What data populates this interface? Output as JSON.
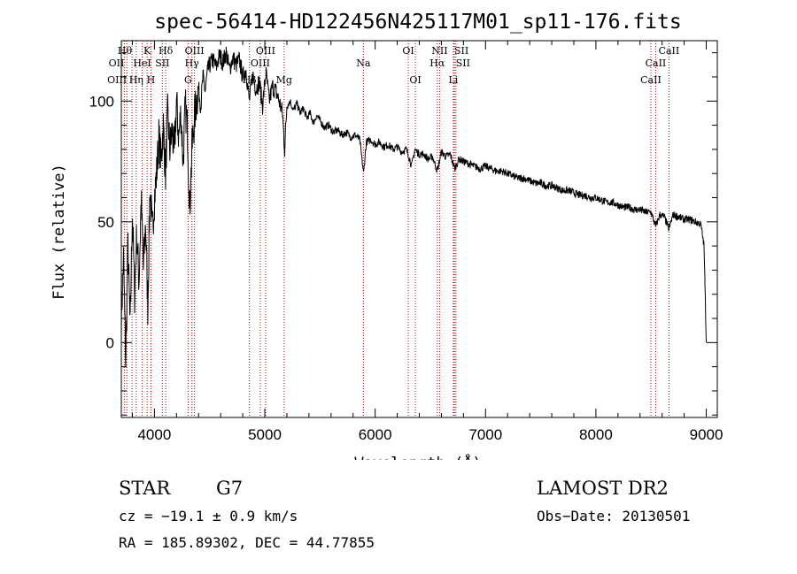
{
  "chart_data": {
    "type": "line",
    "title": "spec-56414-HD122456N425117M01_sp11-176.fits",
    "xlabel": "Wavelength (Å)",
    "ylabel": "Flux (relative)",
    "xlim": [
      3700,
      9100
    ],
    "ylim": [
      -31,
      125
    ],
    "xticks": [
      4000,
      5000,
      6000,
      7000,
      8000,
      9000
    ],
    "yticks": [
      0,
      50,
      100
    ],
    "grid": false,
    "line_color": "#000000",
    "marker_color": "#b30000",
    "series": [
      {
        "x": [
          3700,
          3720,
          3740,
          3760,
          3780,
          3800,
          3820,
          3840,
          3860,
          3880,
          3900,
          3920,
          3940,
          3960,
          3980,
          4000,
          4020,
          4040,
          4060,
          4080,
          4100,
          4120,
          4140,
          4160,
          4180,
          4200,
          4220,
          4240,
          4260,
          4280,
          4300,
          4320,
          4340,
          4360,
          4380,
          4400,
          4420,
          4440,
          4460,
          4480,
          4500,
          4530,
          4560,
          4590,
          4620,
          4650,
          4680,
          4710,
          4740,
          4770,
          4800,
          4830,
          4860,
          4890,
          4920,
          4950,
          4980,
          5010,
          5040,
          5070,
          5100,
          5130,
          5160,
          5180,
          5200,
          5230,
          5260,
          5290,
          5320,
          5350,
          5380,
          5410,
          5440,
          5470,
          5500,
          5540,
          5580,
          5620,
          5660,
          5700,
          5740,
          5780,
          5820,
          5860,
          5895,
          5920,
          5960,
          6000,
          6040,
          6080,
          6120,
          6160,
          6200,
          6240,
          6280,
          6300,
          6330,
          6360,
          6400,
          6440,
          6480,
          6520,
          6563,
          6600,
          6640,
          6680,
          6720,
          6760,
          6800,
          6850,
          6900,
          6950,
          7000,
          7050,
          7100,
          7150,
          7200,
          7250,
          7300,
          7350,
          7400,
          7450,
          7500,
          7550,
          7600,
          7650,
          7700,
          7750,
          7800,
          7850,
          7900,
          7950,
          8000,
          8050,
          8100,
          8150,
          8200,
          8250,
          8300,
          8350,
          8400,
          8450,
          8500,
          8542,
          8580,
          8620,
          8662,
          8700,
          8750,
          8800,
          8850,
          8900,
          8950,
          8980,
          9000
        ],
        "y": [
          10,
          35,
          -8,
          40,
          5,
          55,
          20,
          45,
          25,
          60,
          30,
          50,
          15,
          65,
          45,
          60,
          70,
          85,
          75,
          90,
          70,
          95,
          80,
          88,
          78,
          100,
          85,
          95,
          75,
          98,
          88,
          55,
          80,
          92,
          100,
          105,
          98,
          110,
          104,
          112,
          115,
          117,
          114,
          119,
          116,
          120,
          113,
          118,
          115,
          117,
          110,
          113,
          100,
          111,
          105,
          108,
          98,
          112,
          100,
          106,
          104,
          100,
          95,
          80,
          98,
          100,
          96,
          99,
          95,
          97,
          93,
          95,
          91,
          94,
          92,
          89,
          90,
          87,
          88,
          86,
          87,
          85,
          86,
          84,
          70,
          83,
          84,
          82,
          83,
          81,
          82,
          80,
          81,
          79,
          80,
          78,
          73,
          80,
          78,
          78,
          76,
          77,
          71,
          79,
          77,
          78,
          72,
          76,
          75,
          74,
          73,
          72,
          73,
          72,
          71,
          71,
          70,
          69,
          68,
          68,
          67,
          66,
          66,
          65,
          65,
          64,
          63,
          63,
          62,
          61,
          61,
          60,
          60,
          59,
          58,
          58,
          57,
          56,
          56,
          55,
          55,
          54,
          54,
          48,
          53,
          52,
          47,
          53,
          52,
          51,
          51,
          50,
          49,
          40,
          0
        ]
      }
    ],
    "spectral_lines": [
      {
        "label": "Hθ",
        "wavelength": 3797,
        "row": 0,
        "align": "end"
      },
      {
        "label": "OII",
        "wavelength": 3727,
        "row": 1,
        "align": "end"
      },
      {
        "label": "OIII",
        "wavelength": 3750,
        "row": 2,
        "align": "end"
      },
      {
        "label": "K",
        "wavelength": 3934,
        "row": 0,
        "align": "middle"
      },
      {
        "label": "HeI",
        "wavelength": 3889,
        "row": 1,
        "align": "middle"
      },
      {
        "label": "Hη",
        "wavelength": 3835,
        "row": 2,
        "align": "middle"
      },
      {
        "label": "Hδ",
        "wavelength": 4102,
        "row": 0,
        "align": "middle"
      },
      {
        "label": "SII",
        "wavelength": 4072,
        "row": 1,
        "align": "middle"
      },
      {
        "label": "H",
        "wavelength": 3968,
        "row": 2,
        "align": "middle"
      },
      {
        "label": "OIII",
        "wavelength": 4363,
        "row": 0,
        "align": "middle"
      },
      {
        "label": "Hγ",
        "wavelength": 4340,
        "row": 1,
        "align": "middle"
      },
      {
        "label": "G",
        "wavelength": 4305,
        "row": 2,
        "align": "middle"
      },
      {
        "label": "OIII",
        "wavelength": 5007,
        "row": 0,
        "align": "middle"
      },
      {
        "label": "OIII",
        "wavelength": 4959,
        "row": 1,
        "align": "middle"
      },
      {
        "label": "Hβ",
        "wavelength": 4861,
        "row": 2,
        "align": "middle"
      },
      {
        "label": "Mg",
        "wavelength": 5175,
        "row": 2,
        "align": "middle"
      },
      {
        "label": "Na",
        "wavelength": 5893,
        "row": 1,
        "align": "middle"
      },
      {
        "label": "OI",
        "wavelength": 6300,
        "row": 0,
        "align": "middle"
      },
      {
        "label": "OI",
        "wavelength": 6364,
        "row": 2,
        "align": "middle"
      },
      {
        "label": "NII",
        "wavelength": 6584,
        "row": 0,
        "align": "middle"
      },
      {
        "label": "SII",
        "wavelength": 6717,
        "row": 0,
        "align": "start"
      },
      {
        "label": "Hα",
        "wavelength": 6563,
        "row": 1,
        "align": "middle"
      },
      {
        "label": "SII",
        "wavelength": 6731,
        "row": 1,
        "align": "start"
      },
      {
        "label": "Li",
        "wavelength": 6708,
        "row": 2,
        "align": "middle"
      },
      {
        "label": "CaII",
        "wavelength": 8662,
        "row": 0,
        "align": "middle"
      },
      {
        "label": "CaII",
        "wavelength": 8542,
        "row": 1,
        "align": "middle"
      },
      {
        "label": "CaII",
        "wavelength": 8498,
        "row": 2,
        "align": "middle"
      }
    ]
  },
  "info": {
    "class_label": "STAR",
    "subclass": "G7",
    "cz": "cz = −19.1 ± 0.9 km/s",
    "coords": "RA = 185.89302, DEC =  44.77855",
    "survey": "LAMOST DR2",
    "obs_date": "Obs−Date: 20130501"
  }
}
